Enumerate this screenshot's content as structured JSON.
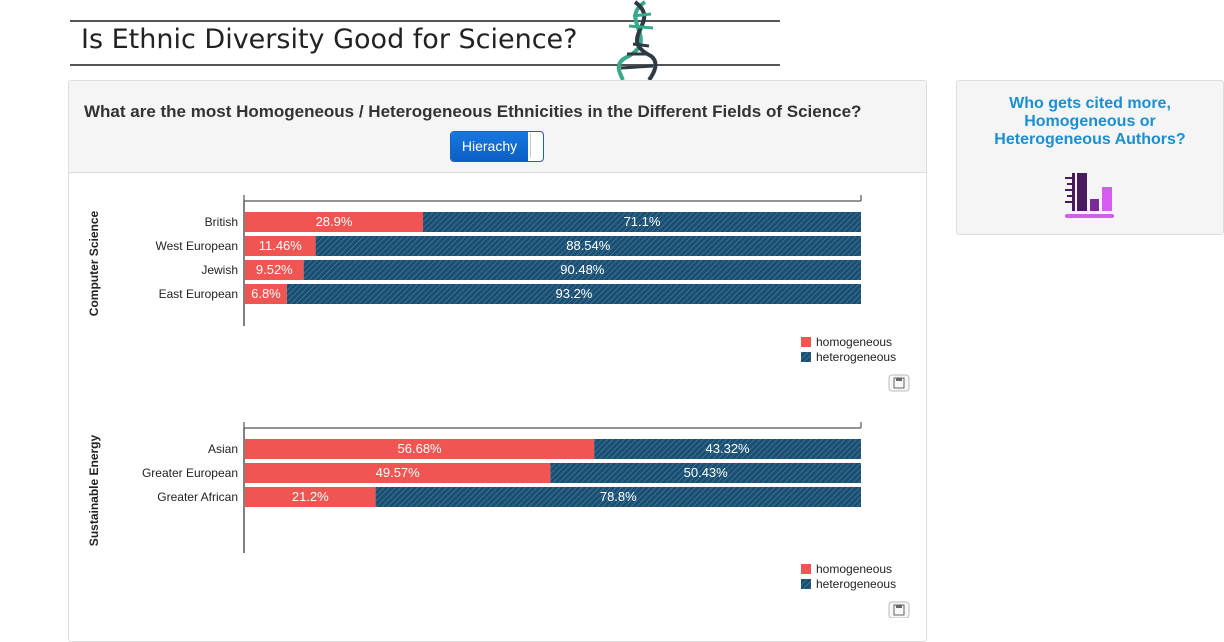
{
  "header": {
    "title": "Is Ethnic Diversity Good for Science?"
  },
  "panel": {
    "question": "What are the most Homogeneous / Heterogeneous Ethnicities in the Different Fields of Science?",
    "toggle_label": "Hierachy"
  },
  "side_card": {
    "line1": "Who gets cited more,",
    "line2": "Homogeneous or",
    "line3": "Heterogeneous Authors?",
    "icon": "bar-chart-icon"
  },
  "colors": {
    "homogeneous": "#f05552",
    "heterogeneous": "#1b4f72",
    "accent": "#1a8fd1"
  },
  "chart_data": [
    {
      "type": "bar",
      "orientation": "horizontal",
      "stacked": true,
      "title": "",
      "ylabel": "Computer Science",
      "categories": [
        "British",
        "West European",
        "Jewish",
        "East European"
      ],
      "series": [
        {
          "name": "homogeneous",
          "values": [
            28.9,
            11.46,
            9.52,
            6.8
          ],
          "labels": [
            "28.9%",
            "11.46%",
            "9.52%",
            "6.8%"
          ]
        },
        {
          "name": "heterogeneous",
          "values": [
            71.1,
            88.54,
            90.48,
            93.2
          ],
          "labels": [
            "71.1%",
            "88.54%",
            "90.48%",
            "93.2%"
          ]
        }
      ],
      "xlim": [
        0,
        100
      ],
      "legend": "bottom-right"
    },
    {
      "type": "bar",
      "orientation": "horizontal",
      "stacked": true,
      "title": "",
      "ylabel": "Sustainable Energy",
      "categories": [
        "Asian",
        "Greater European",
        "Greater African"
      ],
      "series": [
        {
          "name": "homogeneous",
          "values": [
            56.68,
            49.57,
            21.2
          ],
          "labels": [
            "56.68%",
            "49.57%",
            "21.2%"
          ]
        },
        {
          "name": "heterogeneous",
          "values": [
            43.32,
            50.43,
            78.8
          ],
          "labels": [
            "43.32%",
            "50.43%",
            "78.8%"
          ]
        }
      ],
      "xlim": [
        0,
        100
      ],
      "legend": "bottom-right"
    }
  ]
}
